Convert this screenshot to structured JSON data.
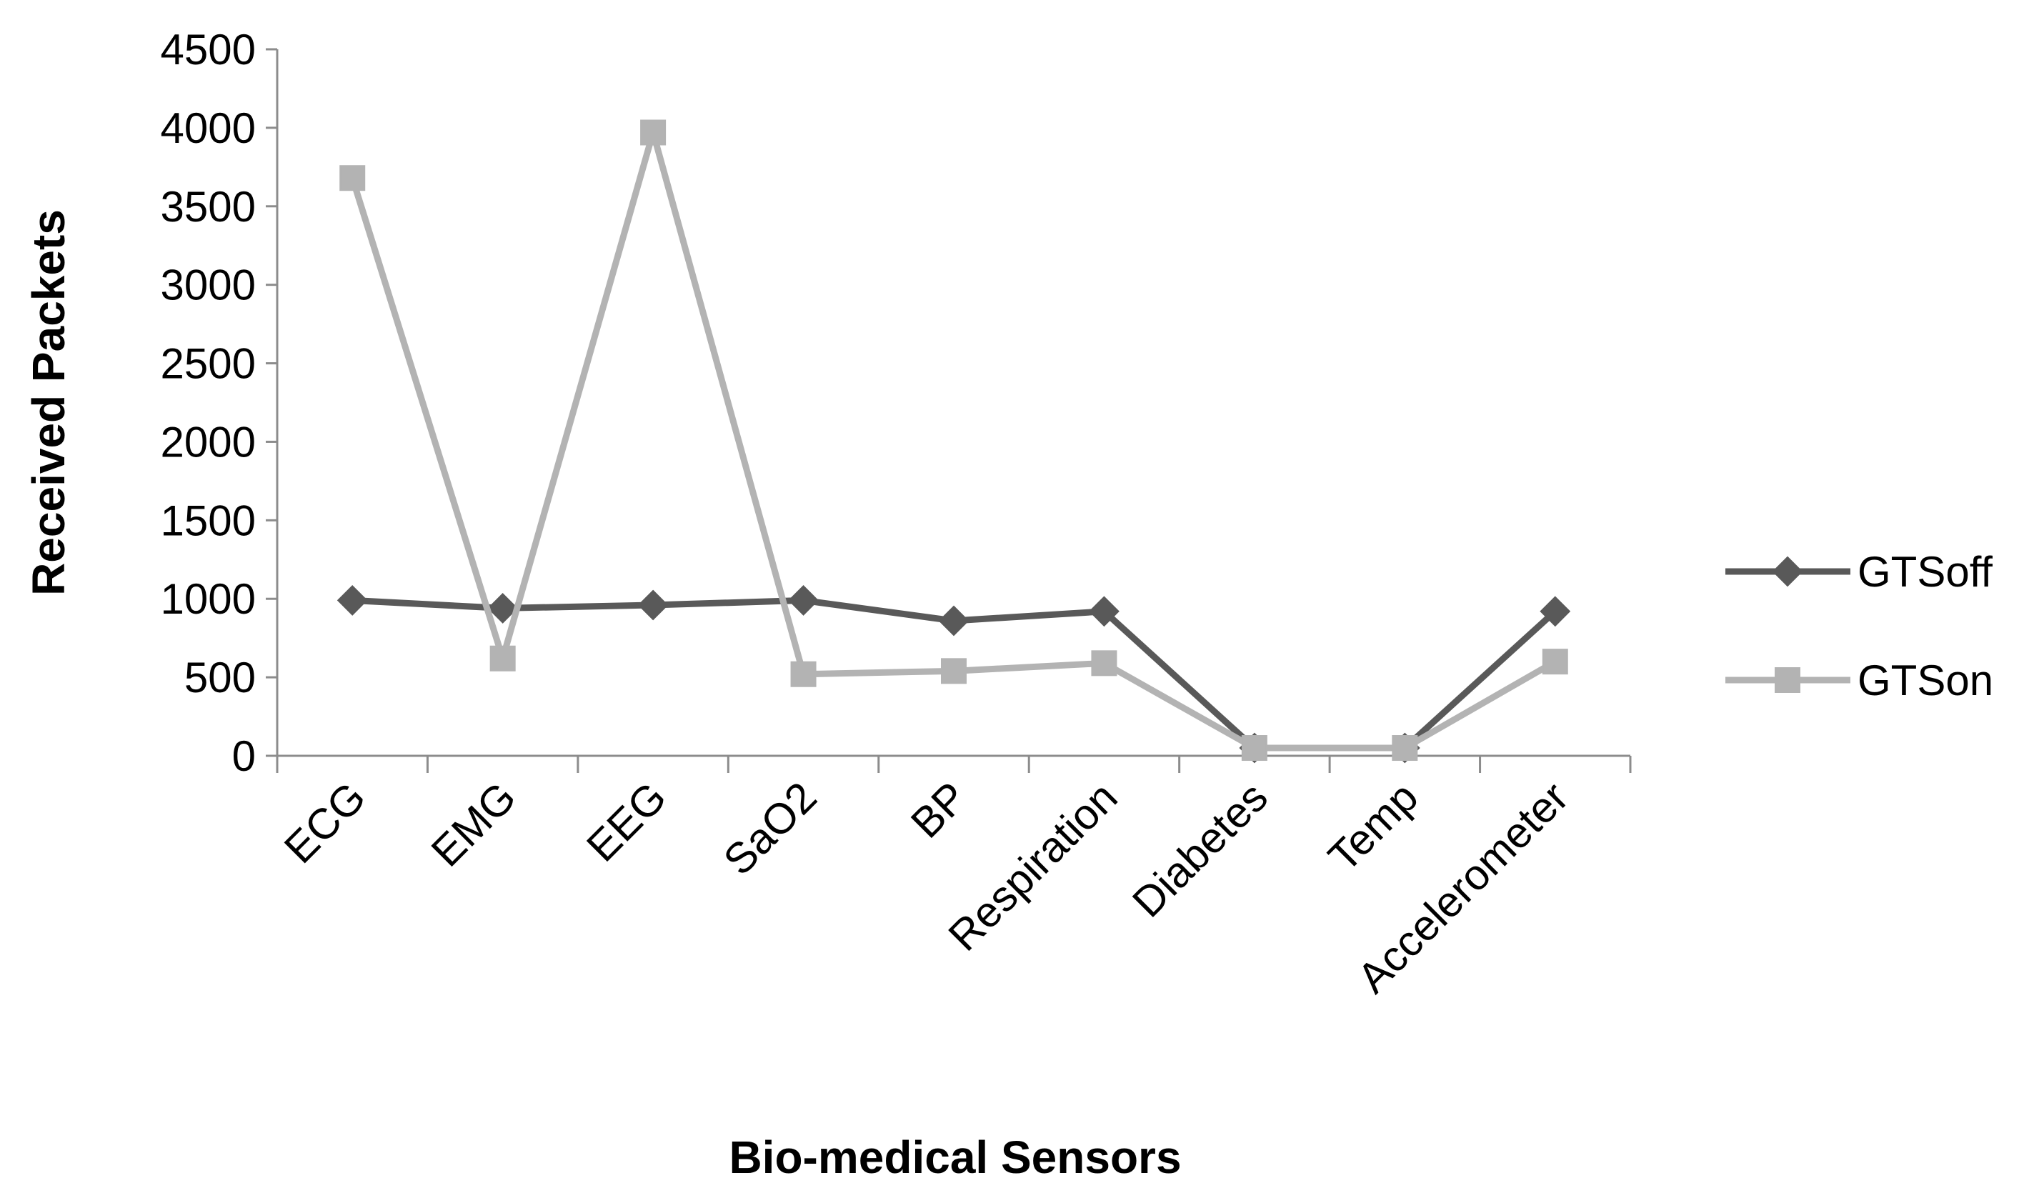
{
  "chart_data": {
    "type": "line",
    "title": "",
    "xlabel": "Bio-medical Sensors",
    "ylabel": "Received Packets",
    "categories": [
      "ECG",
      "EMG",
      "EEG",
      "SaO2",
      "BP",
      "Respiration",
      "Diabetes",
      "Temp",
      "Accelerometer"
    ],
    "ylim": [
      0,
      4500
    ],
    "yticks": [
      0,
      500,
      1000,
      1500,
      2000,
      2500,
      3000,
      3500,
      4000,
      4500
    ],
    "grid": false,
    "legend_position": "right",
    "series": [
      {
        "name": "GTSoff",
        "color": "#595959",
        "marker": "diamond",
        "values": [
          990,
          940,
          960,
          990,
          860,
          920,
          50,
          50,
          920
        ]
      },
      {
        "name": "GTSon",
        "color": "#b3b3b3",
        "marker": "square",
        "values": [
          3680,
          620,
          3970,
          520,
          540,
          590,
          50,
          50,
          600
        ]
      }
    ]
  }
}
